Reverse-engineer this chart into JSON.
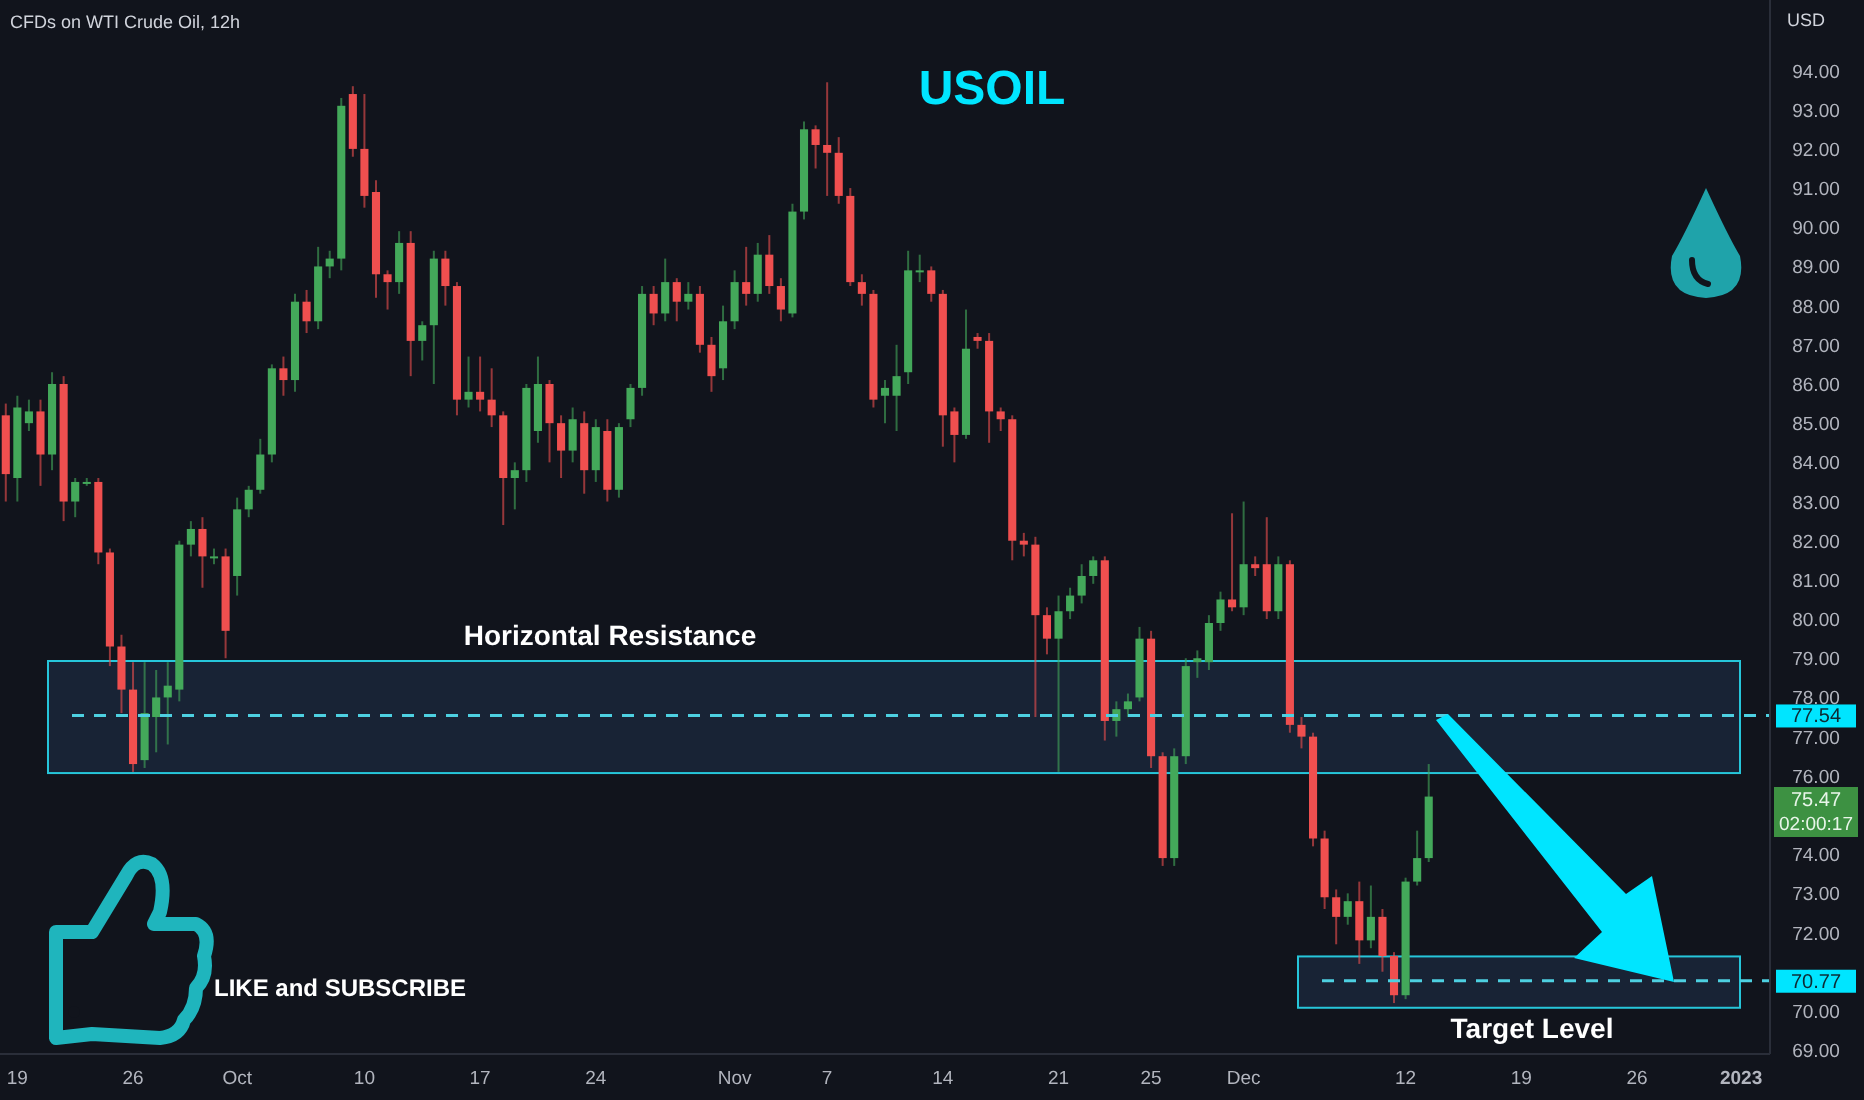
{
  "chart_data": {
    "type": "candlestick",
    "title": "USOIL",
    "subtitle": "CFDs on WTI Crude Oil, 12h",
    "ylabel": "USD",
    "categories": [
      null,
      "19",
      null,
      null,
      null,
      null,
      null,
      null,
      null,
      null,
      null,
      "26",
      null,
      null,
      null,
      null,
      null,
      null,
      null,
      null,
      "Oct",
      null,
      null,
      null,
      null,
      null,
      null,
      null,
      null,
      null,
      null,
      "10",
      null,
      null,
      null,
      null,
      null,
      null,
      null,
      null,
      null,
      "17",
      null,
      null,
      null,
      null,
      null,
      null,
      null,
      null,
      null,
      "24",
      null,
      null,
      null,
      null,
      null,
      null,
      null,
      null,
      null,
      null,
      null,
      "Nov",
      null,
      null,
      null,
      null,
      null,
      null,
      null,
      "7",
      null,
      null,
      null,
      null,
      null,
      null,
      null,
      null,
      null,
      "14",
      null,
      null,
      null,
      null,
      null,
      null,
      null,
      null,
      null,
      "21",
      null,
      null,
      null,
      null,
      null,
      null,
      null,
      "25",
      null,
      null,
      null,
      null,
      null,
      null,
      null,
      "Dec",
      null,
      null,
      null,
      null,
      null,
      null,
      null,
      null,
      null,
      null,
      null,
      null,
      null,
      "12",
      null,
      null,
      null,
      null,
      null,
      null,
      null,
      null,
      null,
      "19",
      null,
      null,
      null,
      null,
      null,
      null,
      null,
      null,
      null,
      "26",
      null,
      null,
      null,
      null,
      null,
      null,
      null,
      null,
      "2023",
      null,
      null
    ],
    "ohlc": [
      [
        85.2,
        85.5,
        83.0,
        83.7
      ],
      [
        83.6,
        85.7,
        83.0,
        85.4
      ],
      [
        85.0,
        85.6,
        84.8,
        85.3
      ],
      [
        85.3,
        85.6,
        83.4,
        84.2
      ],
      [
        84.2,
        86.3,
        83.8,
        86.0
      ],
      [
        86.0,
        86.2,
        82.5,
        83.0
      ],
      [
        83.0,
        83.6,
        82.6,
        83.5
      ],
      [
        83.5,
        83.6,
        83.4,
        83.5
      ],
      [
        83.5,
        83.6,
        81.4,
        81.7
      ],
      [
        81.7,
        81.8,
        78.8,
        79.3
      ],
      [
        79.3,
        79.6,
        77.6,
        78.2
      ],
      [
        78.2,
        78.9,
        76.1,
        76.3
      ],
      [
        76.4,
        78.9,
        76.2,
        77.6
      ],
      [
        77.5,
        78.7,
        76.6,
        78.0
      ],
      [
        78.0,
        78.9,
        76.8,
        78.3
      ],
      [
        78.2,
        82.0,
        77.9,
        81.9
      ],
      [
        81.9,
        82.5,
        81.6,
        82.3
      ],
      [
        82.3,
        82.6,
        80.8,
        81.6
      ],
      [
        81.6,
        81.8,
        81.4,
        81.6
      ],
      [
        81.6,
        81.8,
        79.0,
        79.7
      ],
      [
        81.1,
        83.1,
        80.6,
        82.8
      ],
      [
        82.8,
        83.4,
        82.6,
        83.3
      ],
      [
        83.3,
        84.6,
        83.2,
        84.2
      ],
      [
        84.2,
        86.5,
        84.0,
        86.4
      ],
      [
        86.4,
        86.7,
        85.7,
        86.1
      ],
      [
        86.1,
        88.3,
        85.8,
        88.1
      ],
      [
        88.1,
        88.4,
        87.3,
        87.6
      ],
      [
        87.6,
        89.5,
        87.4,
        89.0
      ],
      [
        89.0,
        89.4,
        88.7,
        89.2
      ],
      [
        89.2,
        93.3,
        88.9,
        93.1
      ],
      [
        93.4,
        93.6,
        91.8,
        92.0
      ],
      [
        92.0,
        93.4,
        90.5,
        90.8
      ],
      [
        90.9,
        91.2,
        88.2,
        88.8
      ],
      [
        88.8,
        88.9,
        87.9,
        88.6
      ],
      [
        88.6,
        89.9,
        88.3,
        89.6
      ],
      [
        89.6,
        89.9,
        86.2,
        87.1
      ],
      [
        87.1,
        87.6,
        86.6,
        87.5
      ],
      [
        87.5,
        89.4,
        86.0,
        89.2
      ],
      [
        89.2,
        89.4,
        88.0,
        88.5
      ],
      [
        88.5,
        88.6,
        85.2,
        85.6
      ],
      [
        85.6,
        86.7,
        85.4,
        85.8
      ],
      [
        85.8,
        86.7,
        85.3,
        85.6
      ],
      [
        85.6,
        86.4,
        84.9,
        85.2
      ],
      [
        85.2,
        85.3,
        82.4,
        83.6
      ],
      [
        83.6,
        84.0,
        82.8,
        83.8
      ],
      [
        83.8,
        86.0,
        83.5,
        85.9
      ],
      [
        84.8,
        86.7,
        84.5,
        86.0
      ],
      [
        86.0,
        86.1,
        84.0,
        85.0
      ],
      [
        85.0,
        85.2,
        83.6,
        84.3
      ],
      [
        84.3,
        85.4,
        84.0,
        85.1
      ],
      [
        85.0,
        85.3,
        83.2,
        83.8
      ],
      [
        83.8,
        85.1,
        83.5,
        84.9
      ],
      [
        84.8,
        85.1,
        83.0,
        83.3
      ],
      [
        83.3,
        85.0,
        83.1,
        84.9
      ],
      [
        85.1,
        86.0,
        84.9,
        85.9
      ],
      [
        85.9,
        88.5,
        85.7,
        88.3
      ],
      [
        88.3,
        88.5,
        87.5,
        87.8
      ],
      [
        87.8,
        89.2,
        87.6,
        88.6
      ],
      [
        88.6,
        88.7,
        87.6,
        88.1
      ],
      [
        88.1,
        88.6,
        87.9,
        88.3
      ],
      [
        88.3,
        88.5,
        86.8,
        87.0
      ],
      [
        87.0,
        87.2,
        85.8,
        86.2
      ],
      [
        86.4,
        88.0,
        86.1,
        87.6
      ],
      [
        87.6,
        88.9,
        87.4,
        88.6
      ],
      [
        88.6,
        89.5,
        88.0,
        88.3
      ],
      [
        88.3,
        89.6,
        88.1,
        89.3
      ],
      [
        89.3,
        89.8,
        88.3,
        88.5
      ],
      [
        88.5,
        88.7,
        87.6,
        87.9
      ],
      [
        87.8,
        90.6,
        87.7,
        90.4
      ],
      [
        90.4,
        92.7,
        90.2,
        92.5
      ],
      [
        92.5,
        92.6,
        91.5,
        92.1
      ],
      [
        92.1,
        93.7,
        90.8,
        91.9
      ],
      [
        91.9,
        92.3,
        90.6,
        90.8
      ],
      [
        90.8,
        91.0,
        88.5,
        88.6
      ],
      [
        88.6,
        88.8,
        88.0,
        88.3
      ],
      [
        88.3,
        88.4,
        85.4,
        85.6
      ],
      [
        85.7,
        86.1,
        85.0,
        85.9
      ],
      [
        85.7,
        87.0,
        84.8,
        86.2
      ],
      [
        86.3,
        89.4,
        86.0,
        88.9
      ],
      [
        88.9,
        89.3,
        88.6,
        88.9
      ],
      [
        88.9,
        89.0,
        88.1,
        88.3
      ],
      [
        88.3,
        88.4,
        84.4,
        85.2
      ],
      [
        85.3,
        85.4,
        84.0,
        84.7
      ],
      [
        84.7,
        87.9,
        84.6,
        86.9
      ],
      [
        87.2,
        87.3,
        86.9,
        87.1
      ],
      [
        87.1,
        87.3,
        84.5,
        85.3
      ],
      [
        85.3,
        85.4,
        84.8,
        85.1
      ],
      [
        85.1,
        85.2,
        81.5,
        82.0
      ],
      [
        82.0,
        82.2,
        81.6,
        81.9
      ],
      [
        81.9,
        82.1,
        77.5,
        80.1
      ],
      [
        80.1,
        80.3,
        79.1,
        79.5
      ],
      [
        79.5,
        80.6,
        76.1,
        80.2
      ],
      [
        80.2,
        80.8,
        80.0,
        80.6
      ],
      [
        80.6,
        81.4,
        80.4,
        81.1
      ],
      [
        81.1,
        81.6,
        80.9,
        81.5
      ],
      [
        81.5,
        81.6,
        76.9,
        77.4
      ],
      [
        77.4,
        77.9,
        77.0,
        77.7
      ],
      [
        77.7,
        78.1,
        77.5,
        77.9
      ],
      [
        78.0,
        79.8,
        77.9,
        79.5
      ],
      [
        79.5,
        79.7,
        76.2,
        76.5
      ],
      [
        76.5,
        76.6,
        73.7,
        73.9
      ],
      [
        73.9,
        76.7,
        73.7,
        76.5
      ],
      [
        76.5,
        79.0,
        76.3,
        78.8
      ],
      [
        78.9,
        79.2,
        78.5,
        79.0
      ],
      [
        78.9,
        80.1,
        78.7,
        79.9
      ],
      [
        79.9,
        80.7,
        79.7,
        80.5
      ],
      [
        80.5,
        82.7,
        80.2,
        80.3
      ],
      [
        80.3,
        83.0,
        80.1,
        81.4
      ],
      [
        81.4,
        81.6,
        81.1,
        81.3
      ],
      [
        81.4,
        82.6,
        80.0,
        80.2
      ],
      [
        80.2,
        81.6,
        80.0,
        81.4
      ],
      [
        81.4,
        81.5,
        77.1,
        77.3
      ],
      [
        77.3,
        77.5,
        76.7,
        77.0
      ],
      [
        77.0,
        77.1,
        74.2,
        74.4
      ],
      [
        74.4,
        74.6,
        72.6,
        72.9
      ],
      [
        72.9,
        73.1,
        71.7,
        72.4
      ],
      [
        72.4,
        73.0,
        72.2,
        72.8
      ],
      [
        72.8,
        73.3,
        71.2,
        71.8
      ],
      [
        71.8,
        73.2,
        71.6,
        72.4
      ],
      [
        72.4,
        72.6,
        71.0,
        71.4
      ],
      [
        71.4,
        71.5,
        70.2,
        70.4
      ],
      [
        70.4,
        73.4,
        70.3,
        73.3
      ],
      [
        73.3,
        74.6,
        73.2,
        73.9
      ],
      [
        73.9,
        76.3,
        73.8,
        75.47
      ],
      null,
      null,
      null,
      null,
      null,
      null,
      null,
      null,
      null,
      null,
      null,
      null,
      null,
      null,
      null,
      null,
      null,
      null,
      null,
      null,
      null,
      null,
      null,
      null,
      null,
      null,
      null,
      null,
      null
    ],
    "ylim": [
      68.9,
      95.8
    ],
    "yticks": [
      {
        "value": 69,
        "label": "69.00"
      },
      {
        "value": 70,
        "label": "70.00"
      },
      {
        "value": 72,
        "label": "72.00"
      },
      {
        "value": 73,
        "label": "73.00"
      },
      {
        "value": 74,
        "label": "74.00"
      },
      {
        "value": 76,
        "label": "76.00"
      },
      {
        "value": 77,
        "label": "77.00"
      },
      {
        "value": 78,
        "label": "78.00"
      },
      {
        "value": 79,
        "label": "79.00"
      },
      {
        "value": 80,
        "label": "80.00"
      },
      {
        "value": 81,
        "label": "81.00"
      },
      {
        "value": 82,
        "label": "82.00"
      },
      {
        "value": 83,
        "label": "83.00"
      },
      {
        "value": 84,
        "label": "84.00"
      },
      {
        "value": 85,
        "label": "85.00"
      },
      {
        "value": 86,
        "label": "86.00"
      },
      {
        "value": 87,
        "label": "87.00"
      },
      {
        "value": 88,
        "label": "88.00"
      },
      {
        "value": 89,
        "label": "89.00"
      },
      {
        "value": 90,
        "label": "90.00"
      },
      {
        "value": 91,
        "label": "91.00"
      },
      {
        "value": 92,
        "label": "92.00"
      },
      {
        "value": 93,
        "label": "93.00"
      },
      {
        "value": 94,
        "label": "94.00"
      }
    ],
    "bands": [
      {
        "axis": "y",
        "from": 76.07,
        "to": 78.93,
        "label": "Horizontal Resistance",
        "color": "#26c6da"
      },
      {
        "axis": "y",
        "from": 70.08,
        "to": 71.39,
        "label": "Target Level",
        "color": "#26c6da"
      }
    ],
    "ref_lines": [
      {
        "axis": "y",
        "value": 77.54,
        "label": "77.54",
        "color": "#4dd0e1",
        "line_style": "dashed"
      },
      {
        "axis": "y",
        "value": 70.77,
        "label": "70.77",
        "color": "#4dd0e1",
        "line_style": "dashed"
      }
    ],
    "annotations": [
      "LIKE and SUBSCRIBE",
      "75.47",
      "02:00:17"
    ]
  }
}
